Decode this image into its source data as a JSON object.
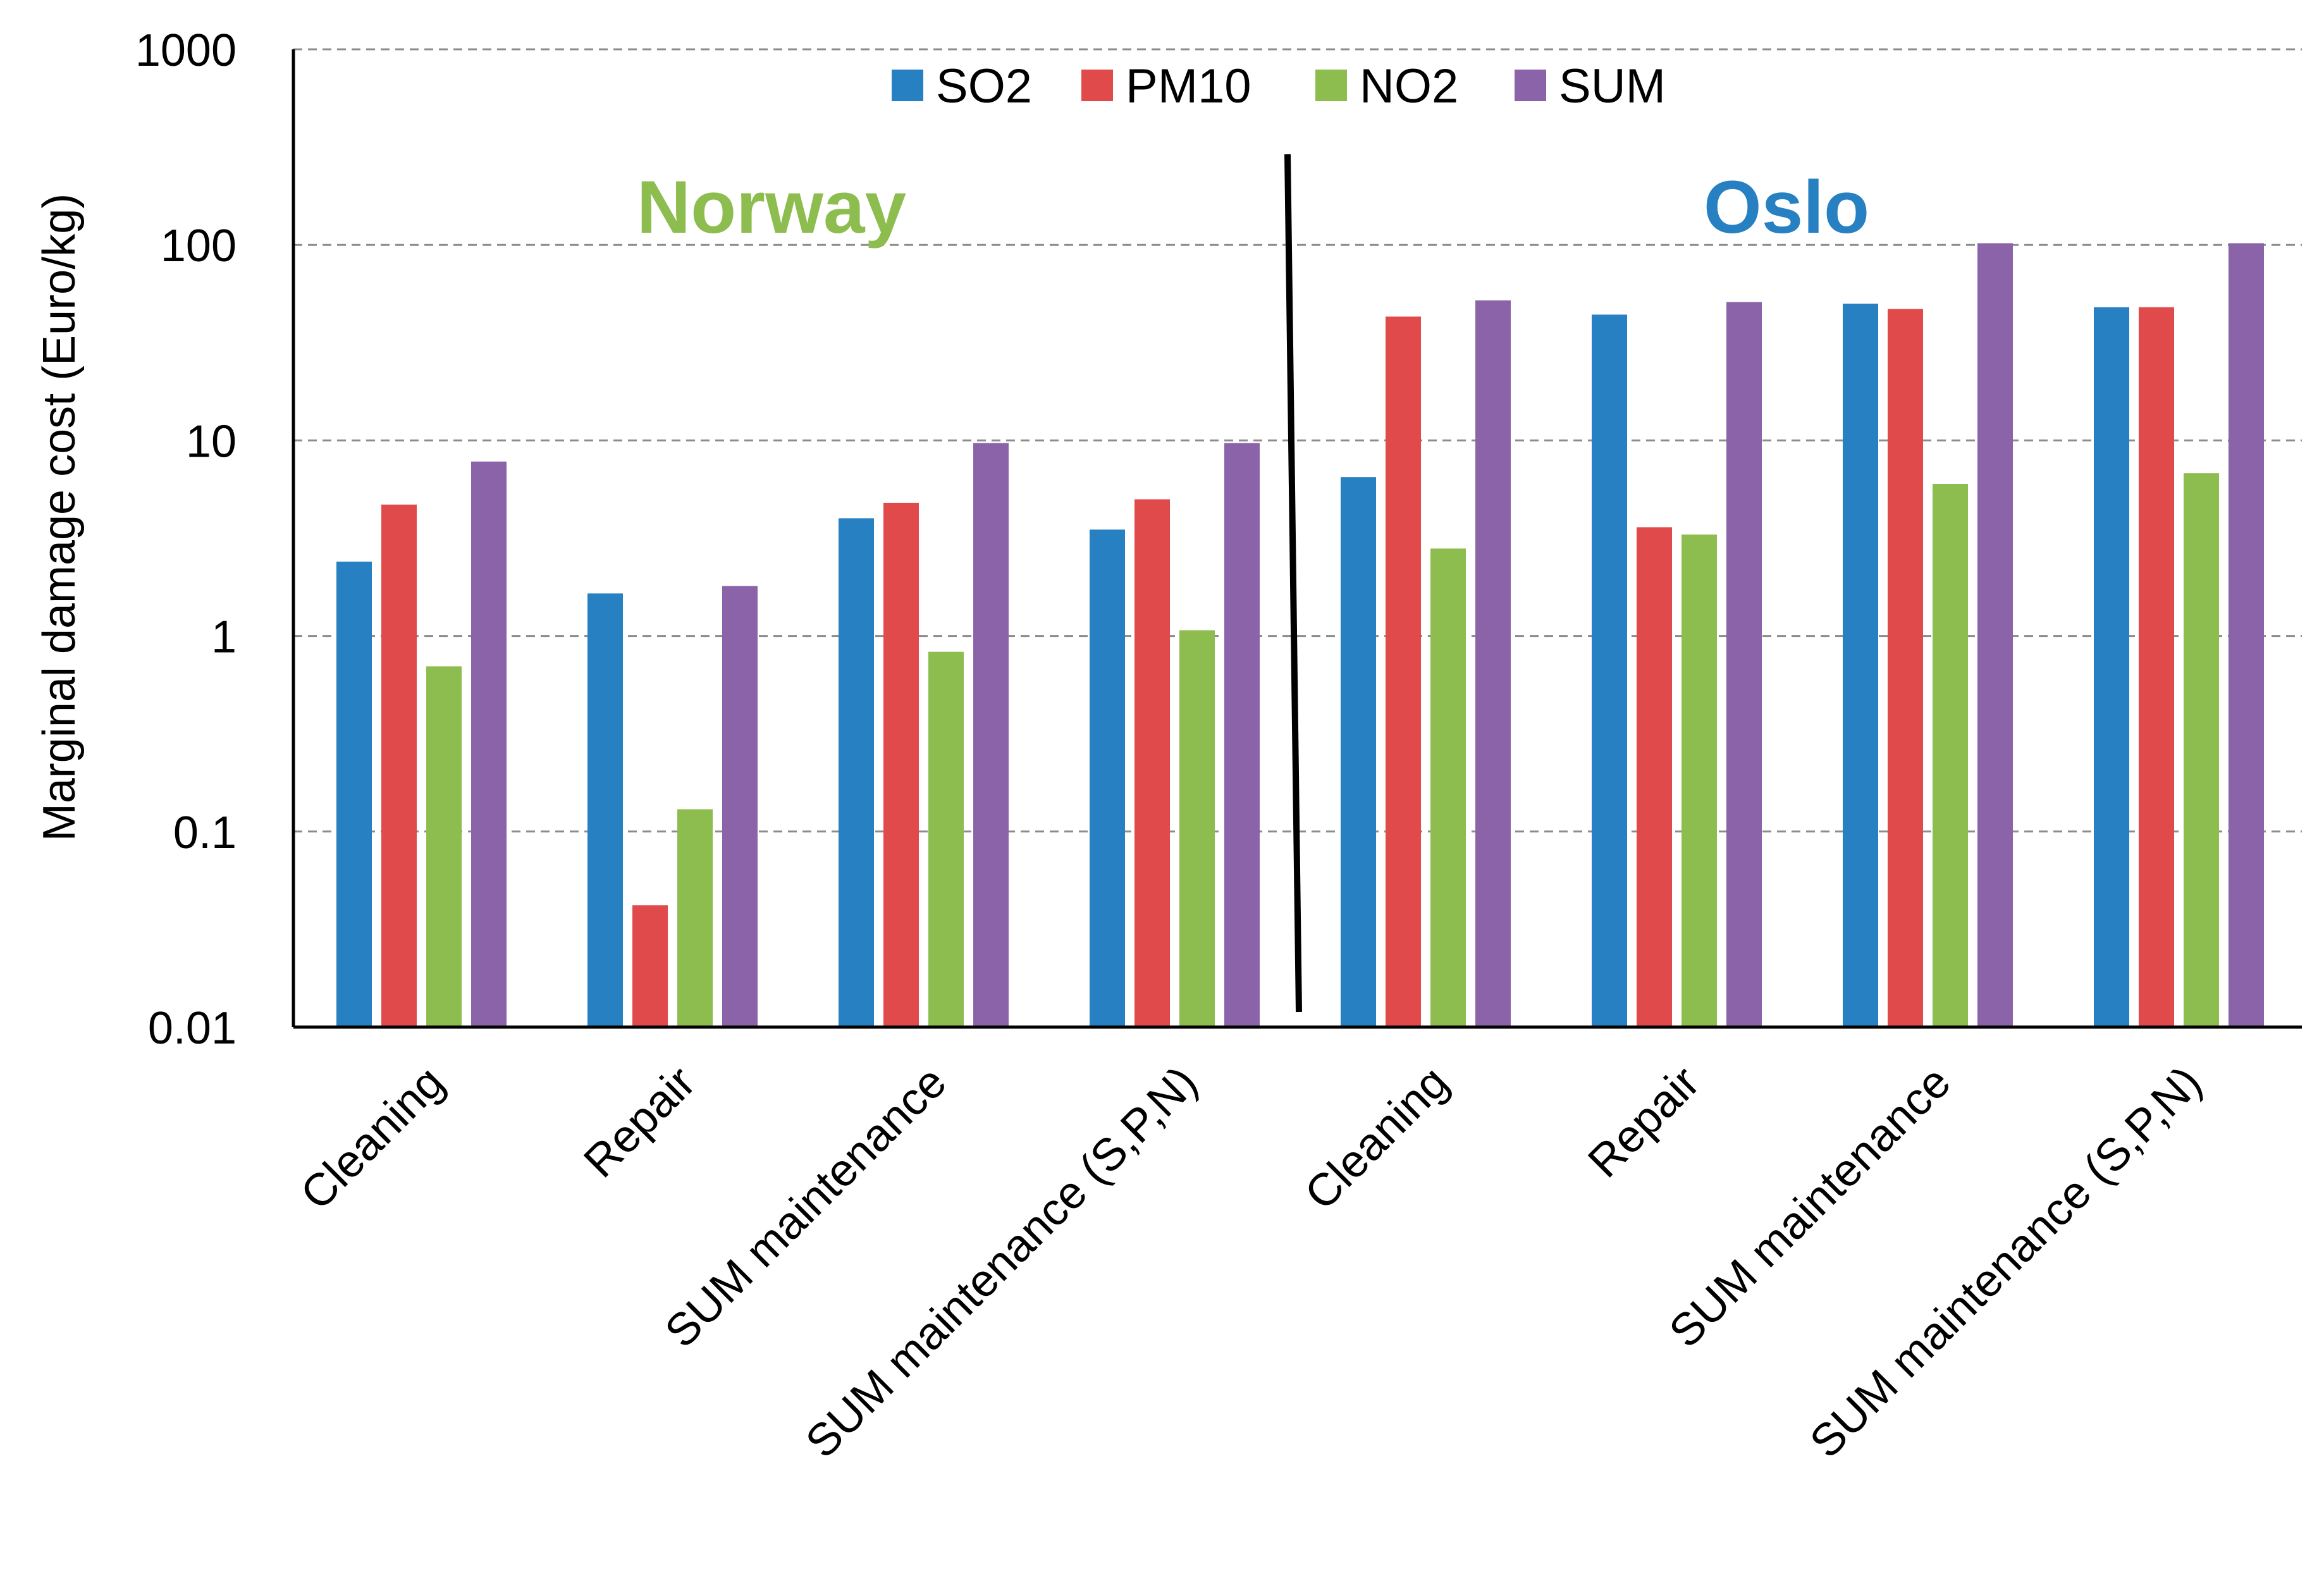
{
  "chart_data": {
    "type": "bar",
    "y_scale": "log",
    "ylabel": "Marginal damage cost (Euro/kg)",
    "ylim": [
      0.01,
      1000
    ],
    "y_ticks": [
      {
        "value": 0.01,
        "label": "0.01"
      },
      {
        "value": 0.1,
        "label": "0.1"
      },
      {
        "value": 1,
        "label": "1"
      },
      {
        "value": 10,
        "label": "10"
      },
      {
        "value": 100,
        "label": "100"
      },
      {
        "value": 1000,
        "label": "1000"
      }
    ],
    "grid": true,
    "legend_position": "top-center",
    "categories": [
      "Cleaning",
      "Repair",
      "SUM maintenance",
      "SUM maintenance (S,P,N)",
      "Cleaning",
      "Repair",
      "SUM maintenance",
      "SUM maintenance (S,P,N)"
    ],
    "series": [
      {
        "name": "SO2",
        "color": "#2680c2",
        "values": [
          2.4,
          1.65,
          4.0,
          3.5,
          6.5,
          44,
          50,
          48
        ]
      },
      {
        "name": "PM10",
        "color": "#e04a4a",
        "values": [
          4.7,
          0.042,
          4.8,
          5.0,
          43,
          3.6,
          47,
          48
        ]
      },
      {
        "name": "NO2",
        "color": "#8dbd4e",
        "values": [
          0.7,
          0.13,
          0.83,
          1.07,
          2.8,
          3.3,
          6.0,
          6.8
        ]
      },
      {
        "name": "SUM",
        "color": "#8b63a8",
        "values": [
          7.8,
          1.8,
          9.7,
          9.7,
          52,
          51,
          102,
          102
        ]
      }
    ],
    "regions": [
      {
        "label": "Norway",
        "color": "#8dbd4e",
        "categories": [
          0,
          1,
          2,
          3
        ]
      },
      {
        "label": "Oslo",
        "color": "#2680c2",
        "categories": [
          4,
          5,
          6,
          7
        ]
      }
    ]
  }
}
